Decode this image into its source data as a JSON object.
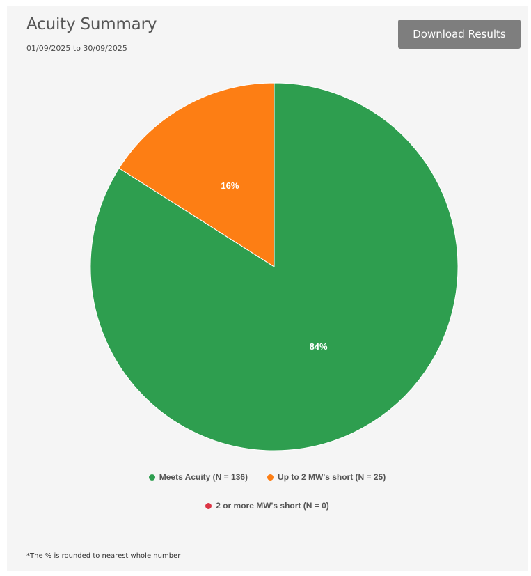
{
  "header": {
    "title": "Acuity Summary",
    "date_range": "01/09/2025 to 30/09/2025",
    "download_label": "Download Results"
  },
  "chart_data": {
    "type": "pie",
    "title": "Acuity Summary",
    "subtitle": "01/09/2025 to 30/09/2025",
    "categories": [
      "Meets Acuity",
      "Up to 2 MW's short",
      "2 or more MW's short"
    ],
    "values": [
      84,
      16,
      0
    ],
    "counts": [
      136,
      25,
      0
    ],
    "data_labels": [
      "84%",
      "16%",
      ""
    ],
    "legend_labels": [
      "Meets Acuity (N = 136)",
      "Up to 2 MW's short (N = 25)",
      "2 or more MW's short (N = 0)"
    ],
    "colors": [
      "#2e9e4f",
      "#fd7e14",
      "#dc3545"
    ],
    "legend_position": "bottom"
  },
  "footnote": "*The % is rounded to nearest whole number"
}
